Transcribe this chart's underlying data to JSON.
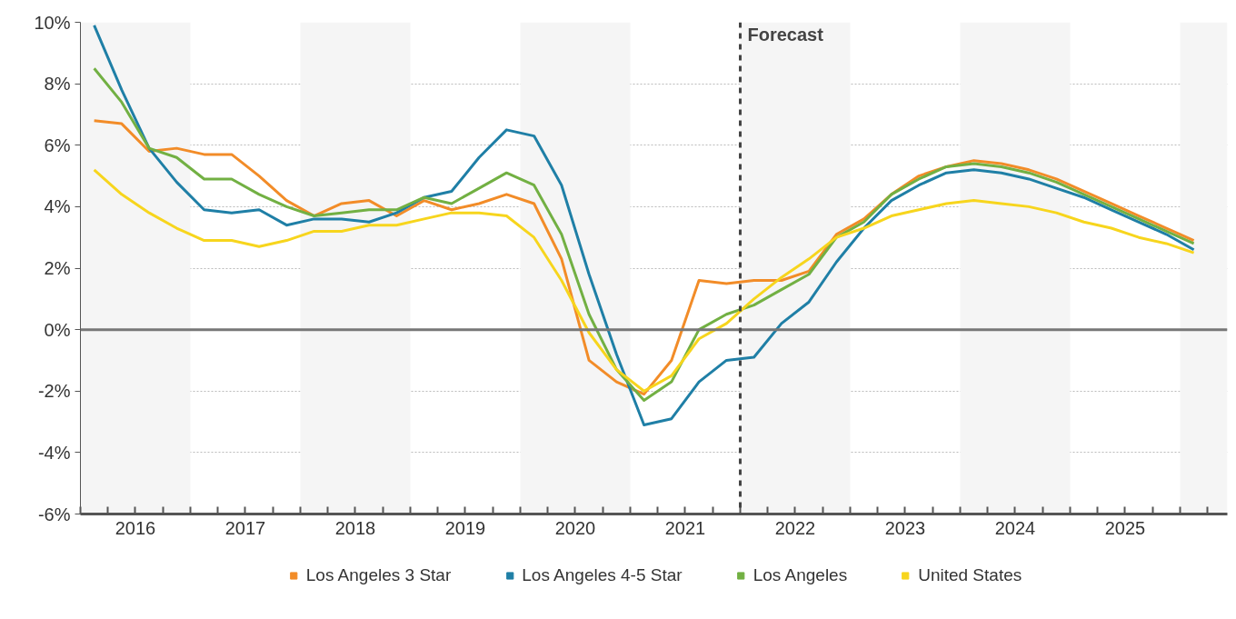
{
  "chart_data": {
    "type": "line",
    "x": [
      2016.125,
      2016.375,
      2016.625,
      2016.875,
      2017.125,
      2017.375,
      2017.625,
      2017.875,
      2018.125,
      2018.375,
      2018.625,
      2018.875,
      2019.125,
      2019.375,
      2019.625,
      2019.875,
      2020.125,
      2020.375,
      2020.625,
      2020.875,
      2021.125,
      2021.375,
      2021.625,
      2021.875,
      2022.125,
      2022.375,
      2022.625,
      2022.875,
      2023.125,
      2023.375,
      2023.625,
      2023.875,
      2024.125,
      2024.375,
      2024.625,
      2024.875,
      2025.125,
      2025.375,
      2025.625,
      2025.875,
      2026.125
    ],
    "series": [
      {
        "name": "Los Angeles 3 Star",
        "color": "#f28c28",
        "values": [
          6.8,
          6.7,
          5.8,
          5.9,
          5.7,
          5.7,
          5.0,
          4.2,
          3.7,
          4.1,
          4.2,
          3.7,
          4.2,
          3.9,
          4.1,
          4.4,
          4.1,
          2.3,
          -1.0,
          -1.7,
          -2.1,
          -1.0,
          1.6,
          1.5,
          1.6,
          1.6,
          1.9,
          3.1,
          3.6,
          4.4,
          5.0,
          5.3,
          5.5,
          5.4,
          5.2,
          4.9,
          4.5,
          4.1,
          3.7,
          3.3,
          2.9
        ]
      },
      {
        "name": "Los Angeles 4-5 Star",
        "color": "#1f7fa6",
        "values": [
          9.9,
          7.8,
          5.9,
          4.8,
          3.9,
          3.8,
          3.9,
          3.4,
          3.6,
          3.6,
          3.5,
          3.8,
          4.3,
          4.5,
          5.6,
          6.5,
          6.3,
          4.7,
          1.8,
          -0.8,
          -3.1,
          -2.9,
          -1.7,
          -1.0,
          -0.9,
          0.2,
          0.9,
          2.2,
          3.3,
          4.2,
          4.7,
          5.1,
          5.2,
          5.1,
          4.9,
          4.6,
          4.3,
          3.9,
          3.5,
          3.1,
          2.6
        ]
      },
      {
        "name": "Los Angeles",
        "color": "#72b043",
        "values": [
          8.5,
          7.4,
          5.9,
          5.6,
          4.9,
          4.9,
          4.4,
          4.0,
          3.7,
          3.8,
          3.9,
          3.9,
          4.3,
          4.1,
          4.6,
          5.1,
          4.7,
          3.1,
          0.5,
          -1.3,
          -2.3,
          -1.7,
          0.0,
          0.5,
          0.8,
          1.3,
          1.8,
          3.0,
          3.5,
          4.4,
          4.9,
          5.3,
          5.4,
          5.3,
          5.1,
          4.8,
          4.4,
          4.0,
          3.6,
          3.2,
          2.8
        ]
      },
      {
        "name": "United States",
        "color": "#f7d51d",
        "values": [
          5.2,
          4.4,
          3.8,
          3.3,
          2.9,
          2.9,
          2.7,
          2.9,
          3.2,
          3.2,
          3.4,
          3.4,
          3.6,
          3.8,
          3.8,
          3.7,
          3.0,
          1.6,
          -0.1,
          -1.3,
          -2.0,
          -1.5,
          -0.3,
          0.2,
          1.0,
          1.7,
          2.3,
          3.0,
          3.3,
          3.7,
          3.9,
          4.1,
          4.2,
          4.1,
          4.0,
          3.8,
          3.5,
          3.3,
          3.0,
          2.8,
          2.5
        ]
      }
    ],
    "xlim": [
      2016,
      2026.43
    ],
    "xticks": [
      {
        "value": 2016,
        "label": null
      },
      {
        "value": 2016.25,
        "label": null
      },
      {
        "value": 2016.5,
        "label": "2016"
      },
      {
        "value": 2016.75,
        "label": null
      },
      {
        "value": 2017,
        "label": null
      },
      {
        "value": 2017.25,
        "label": null
      },
      {
        "value": 2017.5,
        "label": "2017"
      },
      {
        "value": 2017.75,
        "label": null
      },
      {
        "value": 2018,
        "label": null
      },
      {
        "value": 2018.25,
        "label": null
      },
      {
        "value": 2018.5,
        "label": "2018"
      },
      {
        "value": 2018.75,
        "label": null
      },
      {
        "value": 2019,
        "label": null
      },
      {
        "value": 2019.25,
        "label": null
      },
      {
        "value": 2019.5,
        "label": "2019"
      },
      {
        "value": 2019.75,
        "label": null
      },
      {
        "value": 2020,
        "label": null
      },
      {
        "value": 2020.25,
        "label": null
      },
      {
        "value": 2020.5,
        "label": "2020"
      },
      {
        "value": 2020.75,
        "label": null
      },
      {
        "value": 2021,
        "label": null
      },
      {
        "value": 2021.25,
        "label": null
      },
      {
        "value": 2021.5,
        "label": "2021"
      },
      {
        "value": 2021.75,
        "label": null
      },
      {
        "value": 2022,
        "label": null
      },
      {
        "value": 2022.25,
        "label": null
      },
      {
        "value": 2022.5,
        "label": "2022"
      },
      {
        "value": 2022.75,
        "label": null
      },
      {
        "value": 2023,
        "label": null
      },
      {
        "value": 2023.25,
        "label": null
      },
      {
        "value": 2023.5,
        "label": "2023"
      },
      {
        "value": 2023.75,
        "label": null
      },
      {
        "value": 2024,
        "label": null
      },
      {
        "value": 2024.25,
        "label": null
      },
      {
        "value": 2024.5,
        "label": "2024"
      },
      {
        "value": 2024.75,
        "label": null
      },
      {
        "value": 2025,
        "label": null
      },
      {
        "value": 2025.25,
        "label": null
      },
      {
        "value": 2025.5,
        "label": "2025"
      },
      {
        "value": 2025.75,
        "label": null
      },
      {
        "value": 2026,
        "label": null
      },
      {
        "value": 2026.25,
        "label": null
      }
    ],
    "ylim": [
      -6,
      10
    ],
    "yticks": [
      {
        "value": -6,
        "label": "-6%"
      },
      {
        "value": -4,
        "label": "-4%"
      },
      {
        "value": -2,
        "label": "-2%"
      },
      {
        "value": 0,
        "label": "0%"
      },
      {
        "value": 2,
        "label": "2%"
      },
      {
        "value": 4,
        "label": "4%"
      },
      {
        "value": 6,
        "label": "6%"
      },
      {
        "value": 8,
        "label": "8%"
      },
      {
        "value": 10,
        "label": "10%"
      }
    ],
    "bands": [
      {
        "axis": "x",
        "from": 2016,
        "to": 2017,
        "label": null,
        "color": "#f5f5f5"
      },
      {
        "axis": "x",
        "from": 2018,
        "to": 2019,
        "label": null,
        "color": "#f5f5f5"
      },
      {
        "axis": "x",
        "from": 2020,
        "to": 2021,
        "label": null,
        "color": "#f5f5f5"
      },
      {
        "axis": "x",
        "from": 2022,
        "to": 2023,
        "label": null,
        "color": "#f5f5f5"
      },
      {
        "axis": "x",
        "from": 2024,
        "to": 2025,
        "label": null,
        "color": "#f5f5f5"
      },
      {
        "axis": "x",
        "from": 2026,
        "to": 2026.43,
        "label": null,
        "color": "#f5f5f5"
      }
    ],
    "ref_lines": [
      {
        "axis": "y",
        "value": 0,
        "label": null,
        "color": "#777777",
        "line_style": "solid"
      },
      {
        "axis": "x",
        "value": 2022,
        "label": "Forecast",
        "color": "#444444",
        "line_style": "dashed"
      }
    ],
    "grid": "y",
    "legend": "bottom",
    "marker": "none",
    "line_style": "solid"
  }
}
